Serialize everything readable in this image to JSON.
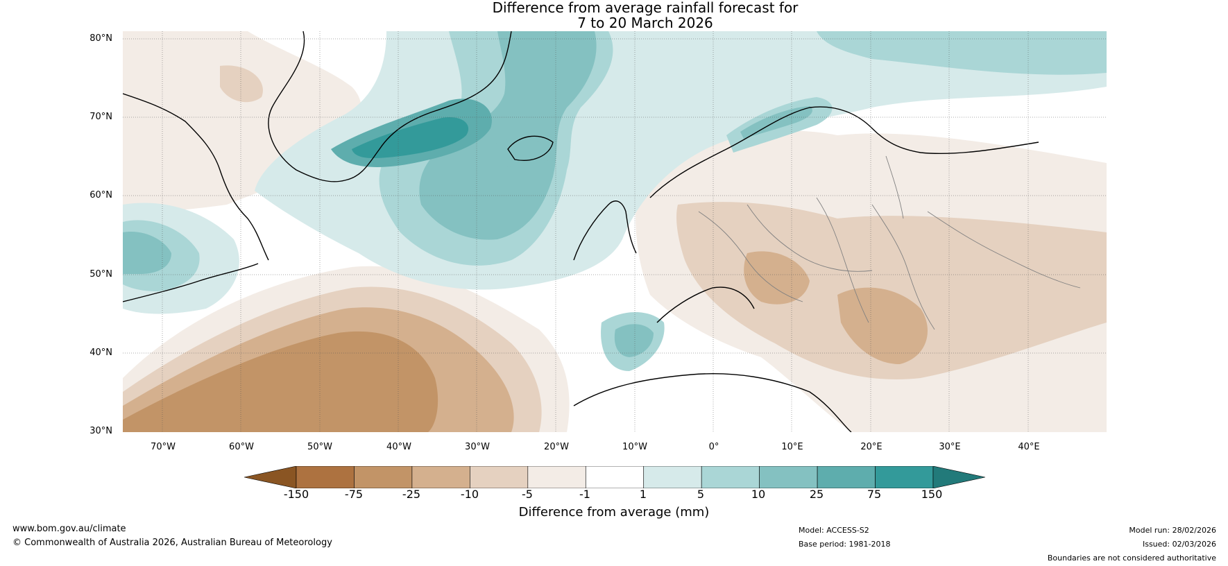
{
  "title_line1": "Difference from average rainfall forecast for",
  "title_line2": "7 to 20 March 2026",
  "lat_labels": [
    "80°N",
    "70°N",
    "60°N",
    "50°N",
    "40°N",
    "30°N"
  ],
  "lon_labels": [
    "70°W",
    "60°W",
    "50°W",
    "40°W",
    "30°W",
    "20°W",
    "10°W",
    "0°",
    "10°E",
    "20°E",
    "30°E",
    "40°E"
  ],
  "colorbar": {
    "title": "Difference from average (mm)",
    "ticks": [
      "-150",
      "-75",
      "-25",
      "-10",
      "-5",
      "-1",
      "1",
      "5",
      "10",
      "25",
      "75",
      "150"
    ],
    "colors": [
      "#8a5523",
      "#ad7240",
      "#c29467",
      "#d4b08e",
      "#e5d1c0",
      "#f3ece6",
      "#ffffff",
      "#d6eaea",
      "#aad6d6",
      "#84c1c1",
      "#5eadad",
      "#339a9a",
      "#227a7a"
    ]
  },
  "footer": {
    "url": "www.bom.gov.au/climate",
    "copyright": "© Commonwealth of Australia 2026, Australian Bureau of Meteorology",
    "model": "Model: ACCESS-S2",
    "base_period": "Base period: 1981-2018",
    "model_run": "Model run: 28/02/2026",
    "issued": "Issued: 02/03/2026",
    "disclaimer": "Boundaries are not considered authoritative"
  }
}
